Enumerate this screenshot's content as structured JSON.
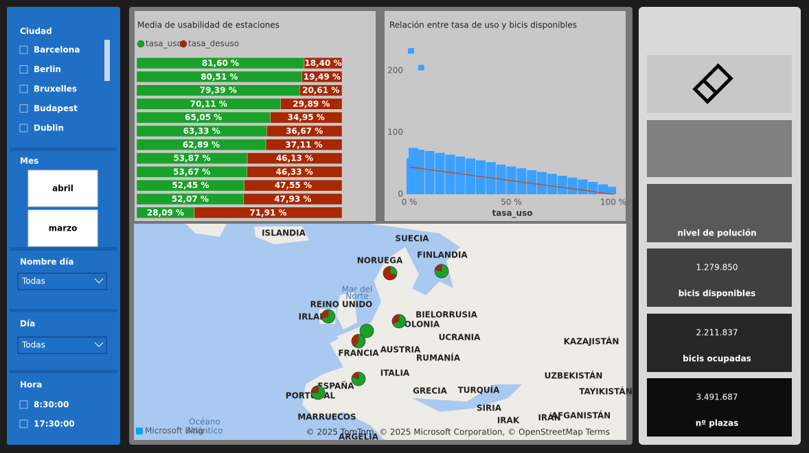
{
  "slicers": {
    "ciudad": {
      "title": "Ciudad",
      "items": [
        "Barcelona",
        "Berlin",
        "Bruxelles",
        "Budapest",
        "Dublin"
      ]
    },
    "mes": {
      "title": "Mes",
      "items": [
        "abril",
        "marzo"
      ]
    },
    "nombre_dia": {
      "title": "Nombre día",
      "value": "Todas"
    },
    "dia": {
      "title": "Día",
      "value": "Todas"
    },
    "hora": {
      "title": "Hora",
      "items": [
        "8:30:00",
        "17:30:00"
      ]
    }
  },
  "chart_data": [
    {
      "type": "bar",
      "title": "Media de usabilidad de estaciones",
      "stacked": true,
      "orientation": "horizontal",
      "categories": [
        null,
        null,
        null,
        null,
        null,
        null,
        null,
        null,
        null,
        null,
        null,
        null
      ],
      "xlim": [
        0,
        100
      ],
      "series": [
        {
          "name": "tasa_uso",
          "color": "#1aa12a",
          "values": [
            81.6,
            80.51,
            79.39,
            70.11,
            65.05,
            63.33,
            62.89,
            53.87,
            53.67,
            52.45,
            52.07,
            28.09
          ],
          "value_labels": [
            "81,60 %",
            "80,51 %",
            "79,39 %",
            "70,11 %",
            "65,05 %",
            "63,33 %",
            "62,89 %",
            "53,87 %",
            "53,67 %",
            "52,45 %",
            "52,07 %",
            "28,09 %"
          ]
        },
        {
          "name": "tasa_desuso",
          "color": "#a82800",
          "values": [
            18.4,
            19.49,
            20.61,
            29.89,
            34.95,
            36.67,
            37.11,
            46.13,
            46.33,
            47.55,
            47.93,
            71.91
          ],
          "value_labels": [
            "18,40 %",
            "19,49 %",
            "20,61 %",
            "29,89 %",
            "34,95 %",
            "36,67 %",
            "37,11 %",
            "46,13 %",
            "46,33 %",
            "47,55 %",
            "47,93 %",
            "71,91 %"
          ]
        }
      ]
    },
    {
      "type": "scatter",
      "title": "Relación entre tasa de uso y bicis disponibles",
      "xlabel": "tasa_uso",
      "color": "#3ba0ff",
      "x": [
        1,
        2,
        5,
        10,
        15,
        20,
        25,
        30,
        35,
        40,
        45,
        50,
        55,
        60,
        65,
        70,
        75,
        80,
        85,
        90,
        95,
        99,
        1,
        6
      ],
      "values": [
        58,
        75,
        72,
        70,
        67,
        64,
        61,
        58,
        55,
        52,
        48,
        45,
        42,
        39,
        36,
        33,
        30,
        27,
        24,
        20,
        16,
        12,
        232,
        205
      ],
      "trend": {
        "color": "#c0502c",
        "x": [
          0,
          100
        ],
        "y": [
          44,
          0
        ]
      },
      "xlim": [
        0,
        100
      ],
      "ylim": [
        0,
        250
      ],
      "xticks": [
        {
          "value": 0,
          "label": "0 %"
        },
        {
          "value": 50,
          "label": "50 %"
        },
        {
          "value": 100,
          "label": "100 %"
        }
      ],
      "yticks": [
        0,
        100,
        200
      ]
    }
  ],
  "map": {
    "labels": [
      "ISLANDIA",
      "SUECIA",
      "NORUEGA",
      "FINLANDIA",
      "Mar del",
      "Norte",
      "REINO UNIDO",
      "IRLAN",
      "BIELORRUSIA",
      "POLONIA",
      "UCRANIA",
      "KAZAJISTÁN",
      "FRANCIA",
      "AUSTRIA",
      "RUMANÍA",
      "UZBEKISTÁN",
      "ITALIA",
      "ESPAÑA",
      "PORTUGAL",
      "TURQUÍA",
      "GRECIA",
      "TAYIKISTÁN",
      "SIRIA",
      "IRAK",
      "IRÁN",
      "AFGANISTÁN",
      "MARRUECOS",
      "ARGELIA",
      "Océano",
      "Atlántico"
    ],
    "logo": "Microsoft Bing",
    "attribution": "© 2025 TomTom, © 2025 Microsoft Corporation, © OpenStreetMap Terms",
    "pies": [
      {
        "values": [
          30,
          70
        ]
      },
      {
        "values": [
          78,
          22
        ]
      },
      {
        "values": [
          70,
          30
        ]
      },
      {
        "values": [
          100,
          0
        ]
      },
      {
        "values": [
          60,
          40
        ]
      },
      {
        "values": [
          70,
          30
        ]
      },
      {
        "values": [
          80,
          20
        ]
      },
      {
        "values": [
          75,
          25
        ]
      }
    ],
    "pie_colors": [
      "#1aa12a",
      "#a82800"
    ]
  },
  "cards": [
    {
      "label": "nivel de polución"
    },
    {
      "value": "1.279.850",
      "label": "bicis disponibles"
    },
    {
      "value": "2.211.837",
      "label": "bicis ocupadas"
    },
    {
      "value": "3.491.687",
      "label": "nº plazas"
    }
  ]
}
